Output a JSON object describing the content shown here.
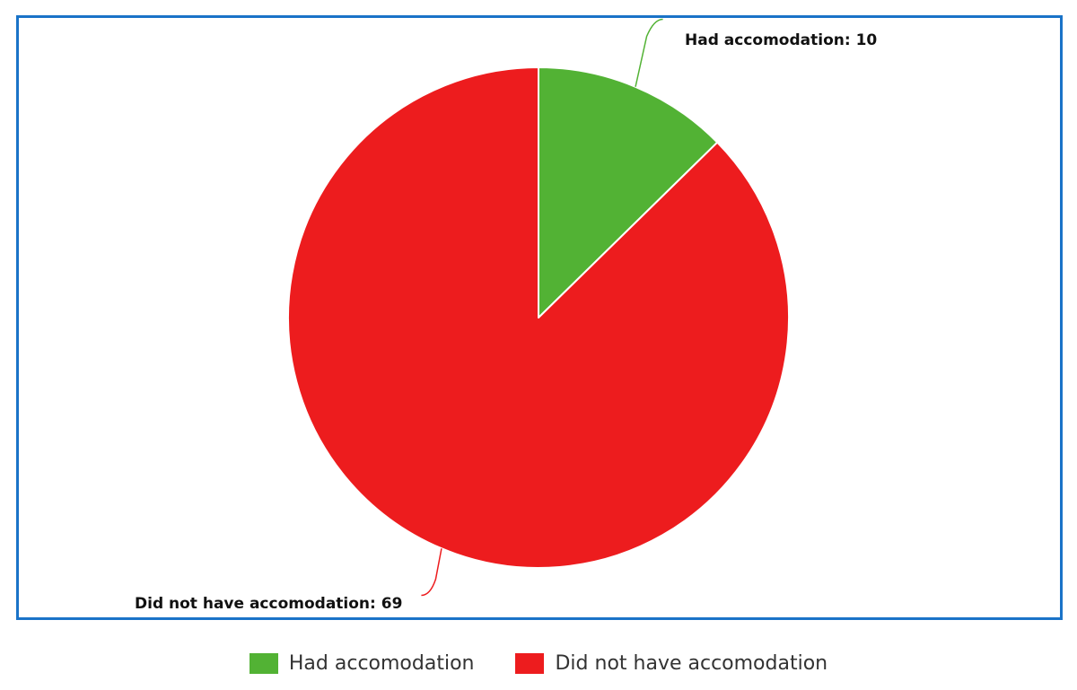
{
  "chart_data": {
    "type": "pie",
    "categories": [
      "Had accomodation",
      "Did not have accomodation"
    ],
    "values": [
      10,
      69
    ],
    "colors": [
      "#52b234",
      "#ed1c1e"
    ],
    "data_labels": [
      "Had accomodation: 10",
      "Did not have accomodation: 69"
    ],
    "legend_position": "bottom",
    "title": ""
  },
  "legend": {
    "items": [
      {
        "label": "Had accomodation",
        "color": "#52b234"
      },
      {
        "label": "Did not have accomodation",
        "color": "#ed1c1e"
      }
    ]
  },
  "frame": {
    "border_color": "#1a73c8"
  }
}
